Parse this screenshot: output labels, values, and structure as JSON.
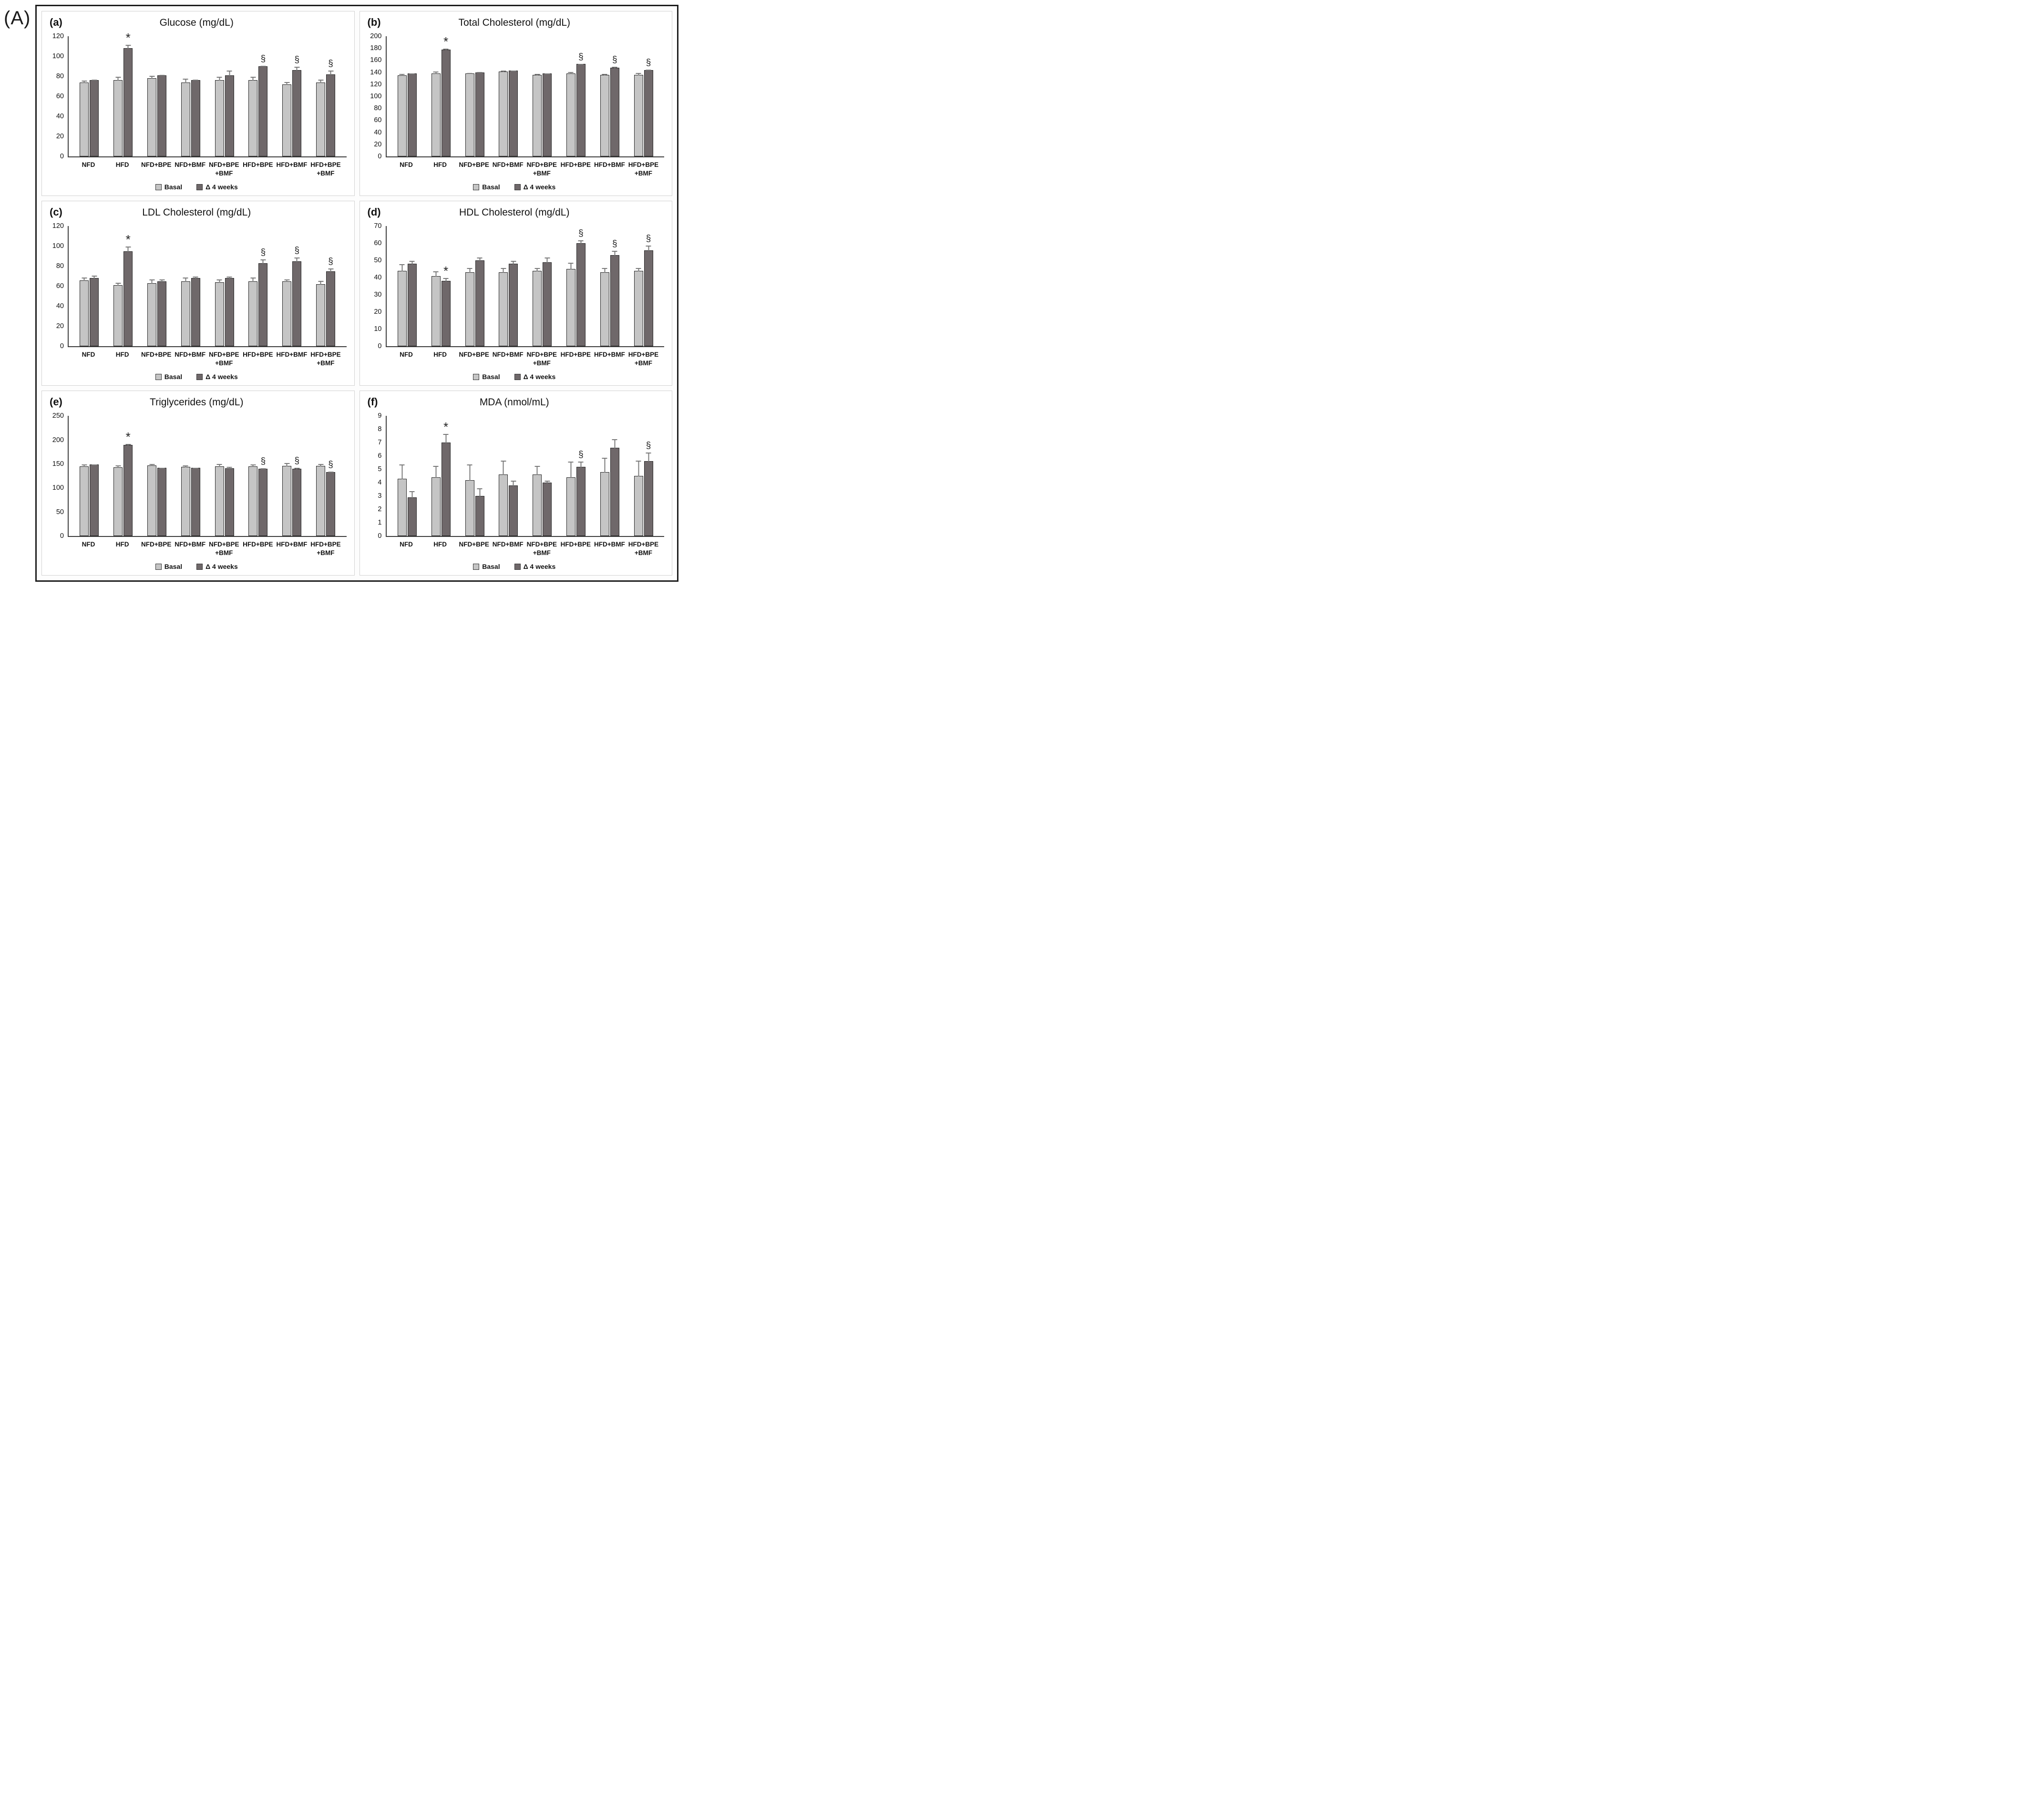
{
  "figure_label": "(A)",
  "legend": {
    "items": [
      {
        "label": "Basal",
        "color_key": "basal"
      },
      {
        "label": "Δ 4 weeks",
        "color_key": "delta"
      }
    ]
  },
  "colors": {
    "basal_bar": "#c5c5c5",
    "delta_bar": "#6f686a",
    "bar_border": "#262626",
    "axis": "#3d3d3d",
    "error_bar": "#7a7a7a"
  },
  "categories": [
    [
      "NFD"
    ],
    [
      "HFD"
    ],
    [
      "NFD+BPE"
    ],
    [
      "NFD+BMF"
    ],
    [
      "NFD+BPE",
      "+BMF"
    ],
    [
      "HFD+BPE"
    ],
    [
      "HFD+BMF"
    ],
    [
      "HFD+BPE",
      "+BMF"
    ]
  ],
  "chart_data": [
    {
      "type": "bar",
      "panel": "(a)",
      "title": "Glucose (mg/dL)",
      "ylim": [
        0,
        120
      ],
      "ytick_step": 20,
      "grid": false,
      "legend_position": "bottom",
      "categories": [
        "NFD",
        "HFD",
        "NFD+BPE",
        "NFD+BMF",
        "NFD+BPE+BMF",
        "HFD+BPE",
        "HFD+BMF",
        "HFD+BPE+BMF"
      ],
      "series": [
        {
          "name": "Basal",
          "values": [
            74,
            76,
            78,
            74,
            76,
            76,
            72,
            74
          ],
          "errors": [
            2,
            4,
            3,
            4,
            4,
            4,
            3,
            3
          ]
        },
        {
          "name": "Δ 4 weeks",
          "values": [
            76,
            108,
            81,
            76,
            81,
            90,
            86,
            82
          ],
          "errors": [
            1,
            4,
            1,
            1,
            5,
            1,
            4,
            4
          ]
        }
      ],
      "markers": [
        "",
        "*",
        "",
        "",
        "",
        "§",
        "§",
        "§"
      ]
    },
    {
      "type": "bar",
      "panel": "(b)",
      "title": "Total Cholesterol (mg/dL)",
      "ylim": [
        0,
        200
      ],
      "ytick_step": 20,
      "grid": false,
      "legend_position": "bottom",
      "categories": [
        "NFD",
        "HFD",
        "NFD+BPE",
        "NFD+BMF",
        "NFD+BPE+BMF",
        "HFD+BPE",
        "HFD+BMF",
        "HFD+BPE+BMF"
      ],
      "series": [
        {
          "name": "Basal",
          "values": [
            135,
            138,
            138,
            141,
            136,
            138,
            136,
            136
          ],
          "errors": [
            3,
            4,
            2,
            3,
            2,
            3,
            2,
            4
          ]
        },
        {
          "name": "Δ 4 weeks",
          "values": [
            138,
            178,
            140,
            143,
            138,
            154,
            148,
            144
          ],
          "errors": [
            1,
            2,
            1,
            1,
            1,
            1,
            2,
            1
          ]
        }
      ],
      "markers": [
        "",
        "*",
        "",
        "",
        "",
        "§",
        "§",
        "§"
      ]
    },
    {
      "type": "bar",
      "panel": "(c)",
      "title": "LDL Cholesterol (mg/dL)",
      "ylim": [
        0,
        120
      ],
      "ytick_step": 20,
      "grid": false,
      "legend_position": "bottom",
      "categories": [
        "NFD",
        "HFD",
        "NFD+BPE",
        "NFD+BMF",
        "NFD+BPE+BMF",
        "HFD+BPE",
        "HFD+BMF",
        "HFD+BPE+BMF"
      ],
      "series": [
        {
          "name": "Basal",
          "values": [
            66,
            61,
            63,
            65,
            64,
            65,
            65,
            62
          ],
          "errors": [
            3,
            3,
            4,
            4,
            3,
            4,
            2,
            4
          ]
        },
        {
          "name": "Δ 4 weeks",
          "values": [
            68,
            95,
            65,
            68,
            68,
            83,
            85,
            75
          ],
          "errors": [
            3,
            5,
            2,
            2,
            2,
            4,
            4,
            3
          ]
        }
      ],
      "markers": [
        "",
        "*",
        "",
        "",
        "",
        "§",
        "§",
        "§"
      ]
    },
    {
      "type": "bar",
      "panel": "(d)",
      "title": "HDL Cholesterol (mg/dL)",
      "ylim": [
        0,
        70
      ],
      "ytick_step": 10,
      "grid": false,
      "legend_position": "bottom",
      "categories": [
        "NFD",
        "HFD",
        "NFD+BPE",
        "NFD+BMF",
        "NFD+BPE+BMF",
        "HFD+BPE",
        "HFD+BMF",
        "HFD+BPE+BMF"
      ],
      "series": [
        {
          "name": "Basal",
          "values": [
            44,
            41,
            43,
            43,
            44,
            45,
            43,
            44
          ],
          "errors": [
            4,
            3,
            3,
            3,
            2,
            4,
            3,
            2
          ]
        },
        {
          "name": "Δ 4 weeks",
          "values": [
            48,
            38,
            50,
            48,
            49,
            60,
            53,
            56
          ],
          "errors": [
            2,
            2,
            2,
            2,
            3,
            2,
            3,
            3
          ]
        }
      ],
      "markers": [
        "",
        "*",
        "",
        "",
        "",
        "§",
        "§",
        "§"
      ]
    },
    {
      "type": "bar",
      "panel": "(e)",
      "title": "Triglycerides (mg/dL)",
      "ylim": [
        0,
        250
      ],
      "ytick_step": 50,
      "grid": false,
      "legend_position": "bottom",
      "categories": [
        "NFD",
        "HFD",
        "NFD+BPE",
        "NFD+BMF",
        "NFD+BPE+BMF",
        "HFD+BPE",
        "HFD+BMF",
        "HFD+BPE+BMF"
      ],
      "series": [
        {
          "name": "Basal",
          "values": [
            145,
            143,
            147,
            144,
            145,
            145,
            146,
            146
          ],
          "errors": [
            5,
            5,
            4,
            4,
            6,
            5,
            7,
            5
          ]
        },
        {
          "name": "Δ 4 weeks",
          "values": [
            149,
            190,
            142,
            142,
            141,
            140,
            140,
            133
          ],
          "errors": [
            1,
            3,
            1,
            1,
            4,
            2,
            3,
            2
          ]
        }
      ],
      "markers": [
        "",
        "*",
        "",
        "",
        "",
        "§",
        "§",
        "§"
      ]
    },
    {
      "type": "bar",
      "panel": "(f)",
      "title": "MDA (nmol/mL)",
      "ylim": [
        0,
        9
      ],
      "ytick_step": 1,
      "grid": false,
      "legend_position": "bottom",
      "categories": [
        "NFD",
        "HFD",
        "NFD+BPE",
        "NFD+BMF",
        "NFD+BPE+BMF",
        "HFD+BPE",
        "HFD+BMF",
        "HFD+BPE+BMF"
      ],
      "series": [
        {
          "name": "Basal",
          "values": [
            4.3,
            4.4,
            4.2,
            4.6,
            4.6,
            4.4,
            4.8,
            4.5
          ],
          "errors": [
            1.1,
            0.9,
            1.2,
            1.1,
            0.7,
            1.2,
            1.1,
            1.2
          ]
        },
        {
          "name": "Δ 4 weeks",
          "values": [
            2.9,
            7.0,
            3.0,
            3.8,
            4.0,
            5.2,
            6.6,
            5.6
          ],
          "errors": [
            0.5,
            0.7,
            0.6,
            0.4,
            0.2,
            0.4,
            0.7,
            0.7
          ]
        }
      ],
      "markers": [
        "",
        "*",
        "",
        "",
        "",
        "§",
        "",
        "§"
      ]
    }
  ]
}
